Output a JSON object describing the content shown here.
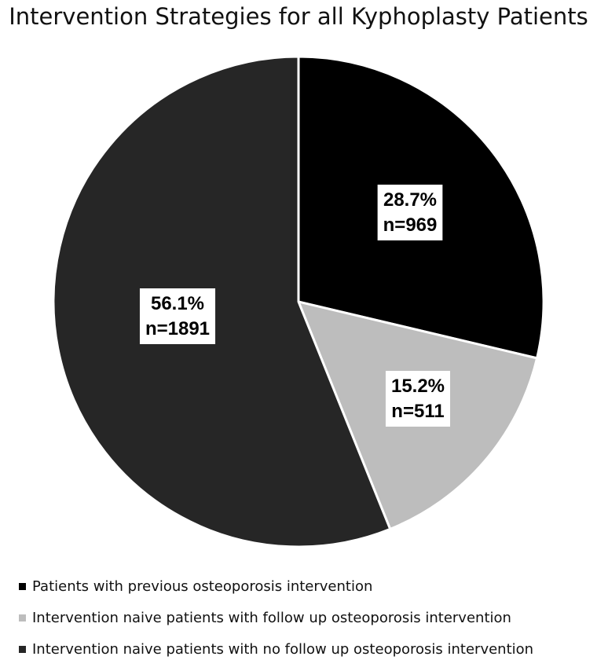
{
  "chart_data": {
    "type": "pie",
    "title": "Intervention Strategies for all Kyphoplasty Patients",
    "slices": [
      {
        "label": "Patients with previous osteoporosis intervention",
        "percent": 28.7,
        "percent_label": "28.7%",
        "n_label": "n=969",
        "value": 969,
        "color": "#000000"
      },
      {
        "label": "Intervention naive patients with follow up osteoporosis intervention",
        "percent": 15.2,
        "percent_label": "15.2%",
        "n_label": "n=511",
        "value": 511,
        "color": "#bdbdbd"
      },
      {
        "label": "Intervention naive patients with no follow up osteoporosis intervention",
        "percent": 56.1,
        "percent_label": "56.1%",
        "n_label": "n=1891",
        "value": 1891,
        "color": "#262626"
      }
    ],
    "legend_position": "bottom"
  }
}
